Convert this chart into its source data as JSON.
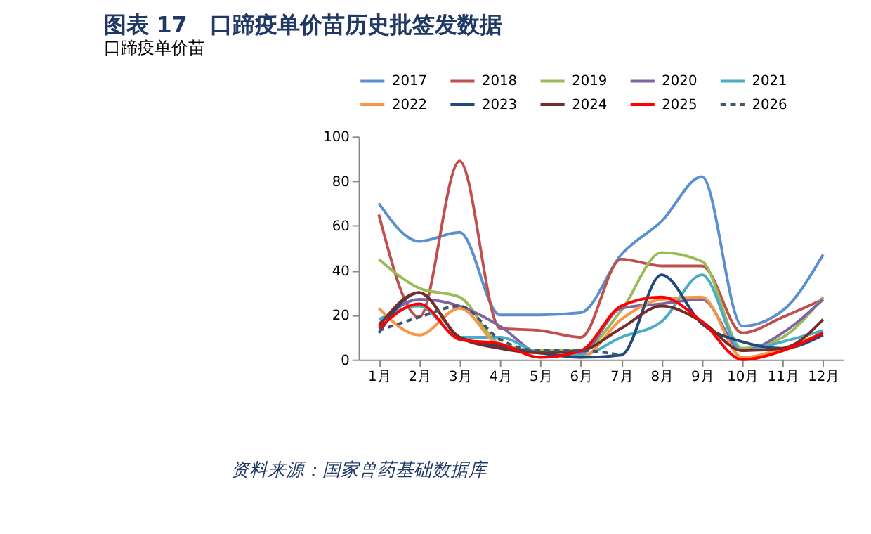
{
  "chart_data": {
    "type": "line",
    "title": "图表 17　口蹄疫单价苗历史批签发数据",
    "subtitle": "口蹄疫单价苗",
    "categories": [
      "1月",
      "2月",
      "3月",
      "4月",
      "5月",
      "6月",
      "7月",
      "8月",
      "9月",
      "10月",
      "11月",
      "12月"
    ],
    "series": [
      {
        "name": "2017",
        "color": "#5b8fcf",
        "values": [
          70,
          53,
          57,
          20,
          20,
          21,
          47,
          62,
          82,
          15,
          22,
          47
        ]
      },
      {
        "name": "2018",
        "color": "#c0504d",
        "values": [
          65,
          19,
          89,
          14,
          13,
          10,
          45,
          42,
          42,
          12,
          19,
          27
        ]
      },
      {
        "name": "2019",
        "color": "#9bbb59",
        "values": [
          45,
          32,
          28,
          7,
          4,
          4,
          22,
          48,
          44,
          5,
          10,
          28
        ]
      },
      {
        "name": "2020",
        "color": "#8064a2",
        "values": [
          16,
          27,
          24,
          15,
          3,
          3,
          23,
          25,
          27,
          4,
          12,
          27
        ]
      },
      {
        "name": "2021",
        "color": "#4bacc6",
        "values": [
          18,
          24,
          10,
          10,
          3,
          2,
          10,
          17,
          38,
          4,
          8,
          13
        ]
      },
      {
        "name": "2022",
        "color": "#f79646",
        "values": [
          23,
          11,
          23,
          6,
          3,
          1,
          18,
          27,
          28,
          1,
          5,
          12
        ]
      },
      {
        "name": "2023",
        "color": "#1f497d",
        "values": [
          12,
          30,
          10,
          6,
          3,
          1,
          2,
          38,
          16,
          8,
          5,
          11
        ]
      },
      {
        "name": "2024",
        "color": "#772c2a",
        "values": [
          15,
          30,
          10,
          5,
          3,
          4,
          14,
          24,
          17,
          4,
          5,
          18
        ]
      },
      {
        "name": "2025",
        "color": "#ff0000",
        "values": [
          14,
          25,
          9,
          7,
          1,
          4,
          24,
          28,
          17,
          0,
          4,
          12
        ]
      },
      {
        "name": "2026",
        "color": "#44546a",
        "line_style": "dashed",
        "values": [
          13,
          19,
          24,
          9,
          4,
          4,
          2,
          null,
          null,
          null,
          null,
          null
        ]
      }
    ],
    "ylim": [
      0,
      100
    ],
    "yticks": [
      0,
      20,
      40,
      60,
      80,
      100
    ],
    "grid": false,
    "legend": "top",
    "line_style": "solid",
    "annotations": [
      "资料来源：国家兽药基础数据库"
    ]
  }
}
